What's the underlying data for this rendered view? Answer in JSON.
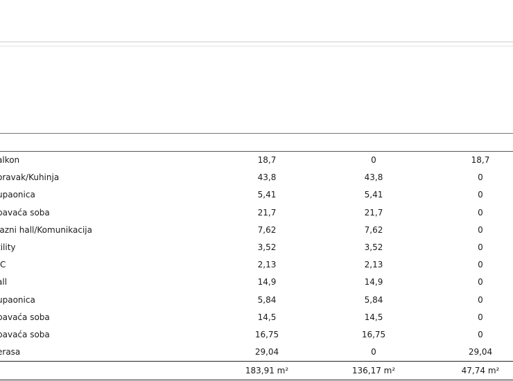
{
  "rooms": [
    {
      "name": "alkon",
      "total": "18,7",
      "closed": "0",
      "open": "18,7"
    },
    {
      "name": "oravak/Kuhinja",
      "total": "43,8",
      "closed": "43,8",
      "open": "0"
    },
    {
      "name": "upaonica",
      "total": "5,41",
      "closed": "5,41",
      "open": "0"
    },
    {
      "name": "pavaća soba",
      "total": "21,7",
      "closed": "21,7",
      "open": "0"
    },
    {
      "name": "lazni hall/Komunikacija",
      "total": "7,62",
      "closed": "7,62",
      "open": "0"
    },
    {
      "name": "tility",
      "total": "3,52",
      "closed": "3,52",
      "open": "0"
    },
    {
      "name": "/C",
      "total": "2,13",
      "closed": "2,13",
      "open": "0"
    },
    {
      "name": "all",
      "total": "14,9",
      "closed": "14,9",
      "open": "0"
    },
    {
      "name": "upaonica",
      "total": "5,84",
      "closed": "5,84",
      "open": "0"
    },
    {
      "name": "pavaća soba",
      "total": "14,5",
      "closed": "14,5",
      "open": "0"
    },
    {
      "name": "pavaća soba",
      "total": "16,75",
      "closed": "16,75",
      "open": "0"
    },
    {
      "name": "erasa",
      "total": "29,04",
      "closed": "0",
      "open": "29,04"
    }
  ],
  "totals": {
    "total": "183,91 m²",
    "closed": "136,17 m²",
    "open": "47,74 m²"
  }
}
